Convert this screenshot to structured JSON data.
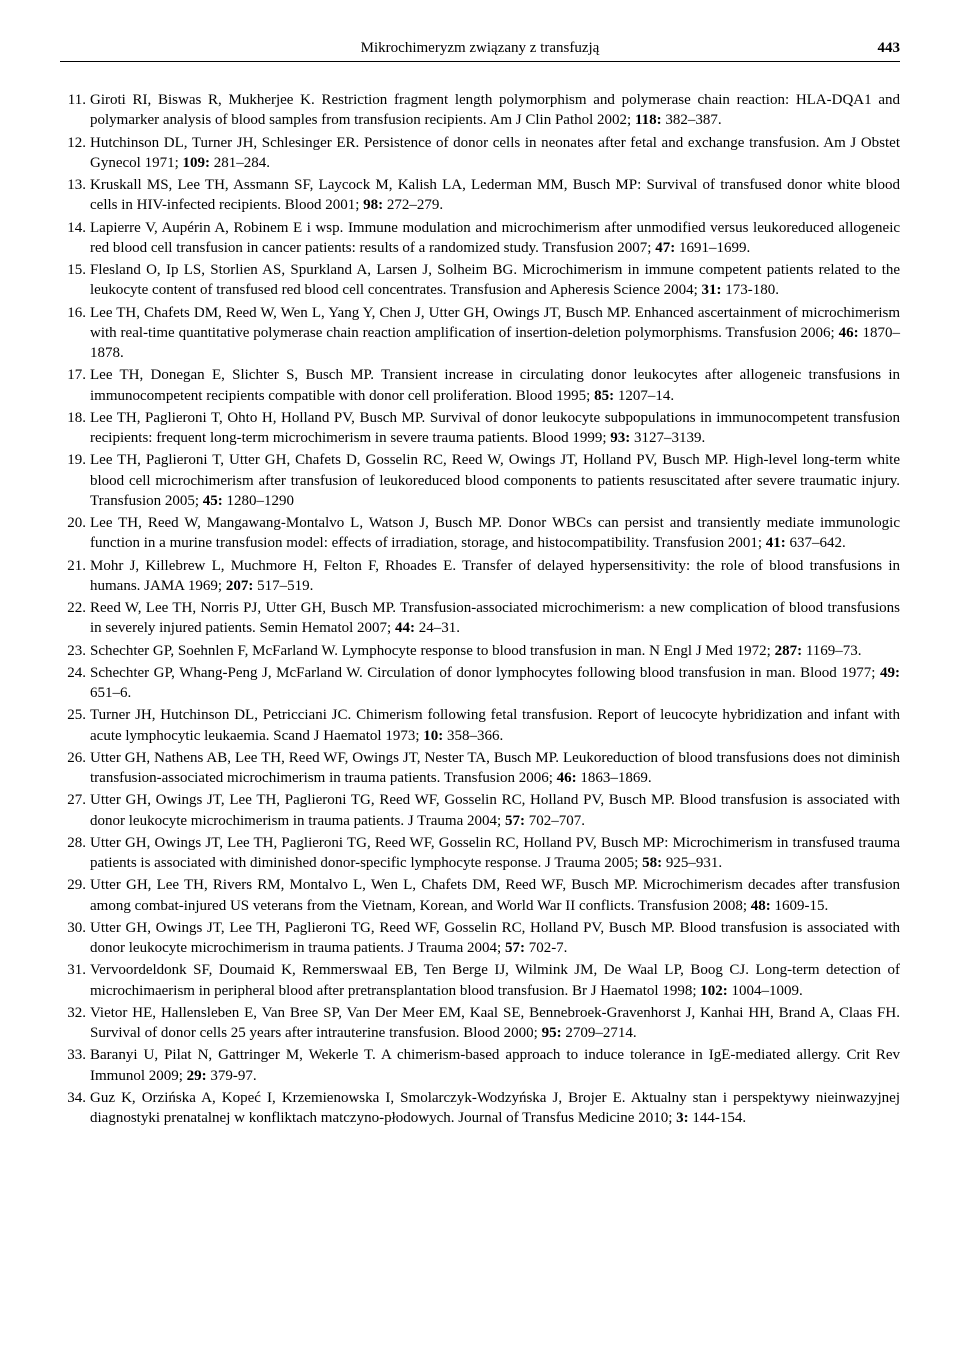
{
  "header": {
    "running_title": "Mikrochimeryzm związany z transfuzją",
    "page_number": "443"
  },
  "references": [
    {
      "authors": "Giroti RI, Biswas R, Mukherjee K.",
      "title": "Restriction fragment length polymorphism and polymerase chain reaction: HLA-DQA1 and polymarker analysis of blood samples from transfusion recipients.",
      "journal": "Am J Clin Pathol 2002;",
      "vol": "118:",
      "pages": "382–387."
    },
    {
      "authors": "Hutchinson DL, Turner JH, Schlesinger ER.",
      "title": "Persistence of donor cells in neonates after fetal and exchange transfusion.",
      "journal": "Am J Obstet Gynecol 1971;",
      "vol": "109:",
      "pages": "281–284."
    },
    {
      "authors": "Kruskall MS, Lee TH, Assmann SF, Laycock M, Kalish LA, Lederman MM, Busch MP:",
      "title": "Survival of transfused donor white blood cells in HIV-infected recipients.",
      "journal": "Blood 2001;",
      "vol": "98:",
      "pages": "272–279."
    },
    {
      "authors": "Lapierre V, Aupérin A, Robinem E i wsp.",
      "title": "Immune modulation and microchimerism after unmodified versus leukoreduced allogeneic red blood cell transfusion in cancer patients: results of a randomized study.",
      "journal": "Transfusion 2007;",
      "vol": "47:",
      "pages": "1691–1699."
    },
    {
      "authors": "Flesland O, Ip LS, Storlien AS, Spurkland A, Larsen J, Solheim BG.",
      "title": "Microchimerism in immune competent patients related to the leukocyte content of transfused red blood cell concentrates.",
      "journal": "Transfusion and Apheresis Science 2004;",
      "vol": "31:",
      "pages": "173-180."
    },
    {
      "authors": "Lee TH, Chafets DM, Reed W, Wen L, Yang Y, Chen J, Utter GH, Owings JT, Busch MP.",
      "title": "Enhanced ascertainment of microchimerism with real-time quantitative polymerase chain reaction amplification of insertion-deletion polymorphisms.",
      "journal": "Transfusion 2006;",
      "vol": "46:",
      "pages": "1870–1878."
    },
    {
      "authors": "Lee TH, Donegan E, Slichter S, Busch MP.",
      "title": "Transient increase in circulating donor leukocytes after allogeneic transfusions in immunocompetent recipients compatible with donor cell proliferation.",
      "journal": "Blood 1995;",
      "vol": "85:",
      "pages": "1207–14."
    },
    {
      "authors": "Lee TH, Paglieroni T, Ohto H, Holland PV, Busch MP.",
      "title": "Survival of donor leukocyte subpopulations in immunocompetent transfusion recipients: frequent long-term microchimerism in severe trauma patients.",
      "journal": "Blood 1999;",
      "vol": "93:",
      "pages": "3127–3139."
    },
    {
      "authors": "Lee TH, Paglieroni T, Utter GH, Chafets D, Gosselin RC, Reed W, Owings JT, Holland PV, Busch MP.",
      "title": "High-level long-term white blood cell microchimerism after transfusion of leukoreduced blood components to patients resuscitated after severe traumatic injury.",
      "journal": "Transfusion 2005;",
      "vol": "45:",
      "pages": "1280–1290"
    },
    {
      "authors": "Lee TH, Reed W, Mangawang-Montalvo L, Watson J, Busch MP.",
      "title": "Donor WBCs can persist and transiently mediate immunologic function in a murine transfusion model: effects of irradiation, storage, and histocompatibility.",
      "journal": "Transfusion 2001;",
      "vol": "41:",
      "pages": "637–642."
    },
    {
      "authors": "Mohr J, Killebrew L, Muchmore H, Felton F, Rhoades E.",
      "title": "Transfer of delayed hypersensitivity: the role of blood transfusions in humans.",
      "journal": "JAMA 1969;",
      "vol": "207:",
      "pages": "517–519."
    },
    {
      "authors": "Reed W, Lee TH, Norris PJ, Utter GH, Busch MP.",
      "title": "Transfusion-associated microchimerism: a new complication of blood transfusions in severely injured patients.",
      "journal": "Semin Hematol 2007;",
      "vol": "44:",
      "pages": "24–31."
    },
    {
      "authors": "Schechter GP, Soehnlen F, McFarland W.",
      "title": "Lymphocyte response to blood transfusion in man.",
      "journal": "N Engl J Med 1972;",
      "vol": "287:",
      "pages": "1169–73."
    },
    {
      "authors": "Schechter GP, Whang-Peng J, McFarland W.",
      "title": "Circulation of donor lymphocytes following blood transfusion in man.",
      "journal": "Blood 1977;",
      "vol": "49:",
      "pages": "651–6."
    },
    {
      "authors": "Turner JH, Hutchinson DL, Petricciani JC.",
      "title": "Chimerism following fetal transfusion. Report of leucocyte hybridization and infant with acute lymphocytic leukaemia.",
      "journal": "Scand J Haematol 1973;",
      "vol": "10:",
      "pages": "358–366."
    },
    {
      "authors": "Utter GH, Nathens AB, Lee TH, Reed WF, Owings JT, Nester TA, Busch MP.",
      "title": "Leukoreduction of blood transfusions does not diminish transfusion-associated microchimerism in trauma patients.",
      "journal": "Transfusion 2006;",
      "vol": "46:",
      "pages": "1863–1869."
    },
    {
      "authors": "Utter GH, Owings JT, Lee TH, Paglieroni TG, Reed WF, Gosselin RC, Holland PV, Busch MP.",
      "title": "Blood transfusion is associated with donor leukocyte microchimerism in trauma patients.",
      "journal": "J Trauma 2004;",
      "vol": "57:",
      "pages": "702–707."
    },
    {
      "authors": "Utter GH, Owings JT, Lee TH, Paglieroni TG, Reed WF, Gosselin RC, Holland PV, Busch MP:",
      "title": "Microchimerism in transfused trauma patients is associated with diminished donor-specific lymphocyte response.",
      "journal": "J Trauma 2005;",
      "vol": "58:",
      "pages": "925–931."
    },
    {
      "authors": "Utter GH, Lee TH, Rivers RM, Montalvo L, Wen L, Chafets DM, Reed WF, Busch MP.",
      "title": "Microchimerism decades after transfusion among combat-injured US veterans from the Vietnam, Korean, and World War II conflicts.",
      "journal": "Transfusion 2008;",
      "vol": "48:",
      "pages": "1609-15."
    },
    {
      "authors": "Utter GH, Owings JT, Lee TH, Paglieroni TG, Reed WF, Gosselin RC, Holland PV, Busch MP.",
      "title": "Blood transfusion is associated with donor leukocyte microchimerism in trauma patients.",
      "journal": "J Trauma 2004;",
      "vol": "57:",
      "pages": "702-7."
    },
    {
      "authors": "Vervoordeldonk SF, Doumaid K, Remmerswaal EB, Ten Berge IJ, Wilmink JM, De Waal LP, Boog CJ.",
      "title": "Long-term detection of microchimaerism in peripheral blood after pretransplantation blood transfusion.",
      "journal": "Br J Haematol 1998;",
      "vol": "102:",
      "pages": "1004–1009."
    },
    {
      "authors": "Vietor HE, Hallensleben E, Van Bree SP, Van Der Meer EM, Kaal SE, Bennebroek-Gravenhorst J, Kanhai HH, Brand A, Claas FH.",
      "title": "Survival of donor cells 25 years after intrauterine transfusion.",
      "journal": "Blood 2000;",
      "vol": "95:",
      "pages": "2709–2714."
    },
    {
      "authors": "Baranyi U, Pilat N, Gattringer M, Wekerle T.",
      "title": "A chimerism-based approach to induce tolerance in IgE-mediated allergy.",
      "journal": "Crit Rev Immunol 2009;",
      "vol": "29:",
      "pages": "379-97."
    },
    {
      "authors": "Guz K, Orzińska A, Kopeć I, Krzemienowska I, Smolarczyk-Wodzyńska J, Brojer E.",
      "title": "Aktualny stan i perspektywy nieinwazyjnej diagnostyki prenatalnej w konfliktach matczyno-płodowych.",
      "journal": "Journal of Transfus Medicine 2010;",
      "vol": "3:",
      "pages": "144-154."
    }
  ]
}
